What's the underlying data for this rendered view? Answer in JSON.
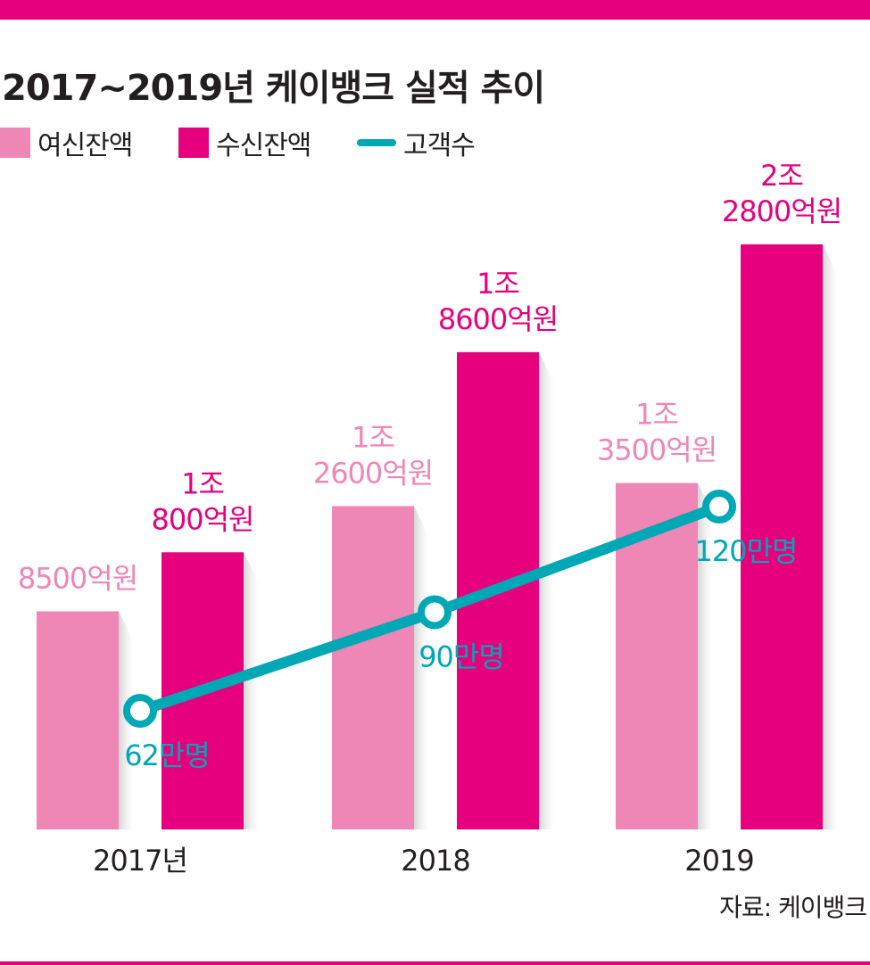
{
  "colors": {
    "accent_bar": "#e6007e",
    "loans": "#ee86b6",
    "deposits": "#e6007e",
    "customers": "#00a7b5",
    "text": "#231f20"
  },
  "title": "2017~2019년 케이뱅크 실적 추이",
  "legend": {
    "loans": "여신잔액",
    "deposits": "수신잔액",
    "customers": "고객수"
  },
  "source": "자료: 케이뱅크",
  "chart_data": {
    "type": "bar",
    "title": "2017~2019년 케이뱅크 실적 추이",
    "categories": [
      "2017년",
      "2018",
      "2019"
    ],
    "series": [
      {
        "name": "여신잔액",
        "unit": "억원",
        "values": [
          8500,
          12600,
          13500
        ],
        "labels": [
          [
            "8500억원"
          ],
          [
            "1조",
            "2600억원"
          ],
          [
            "1조",
            "3500억원"
          ]
        ]
      },
      {
        "name": "수신잔액",
        "unit": "억원",
        "values": [
          10800,
          18600,
          22800
        ],
        "labels": [
          [
            "1조",
            "800억원"
          ],
          [
            "1조",
            "8600억원"
          ],
          [
            "2조",
            "2800억원"
          ]
        ]
      },
      {
        "name": "고객수",
        "type": "line",
        "unit": "만명",
        "values": [
          62,
          90,
          120
        ],
        "labels": [
          "62만명",
          "90만명",
          "120만명"
        ]
      }
    ],
    "grid": false,
    "legend_position": "top-left"
  }
}
